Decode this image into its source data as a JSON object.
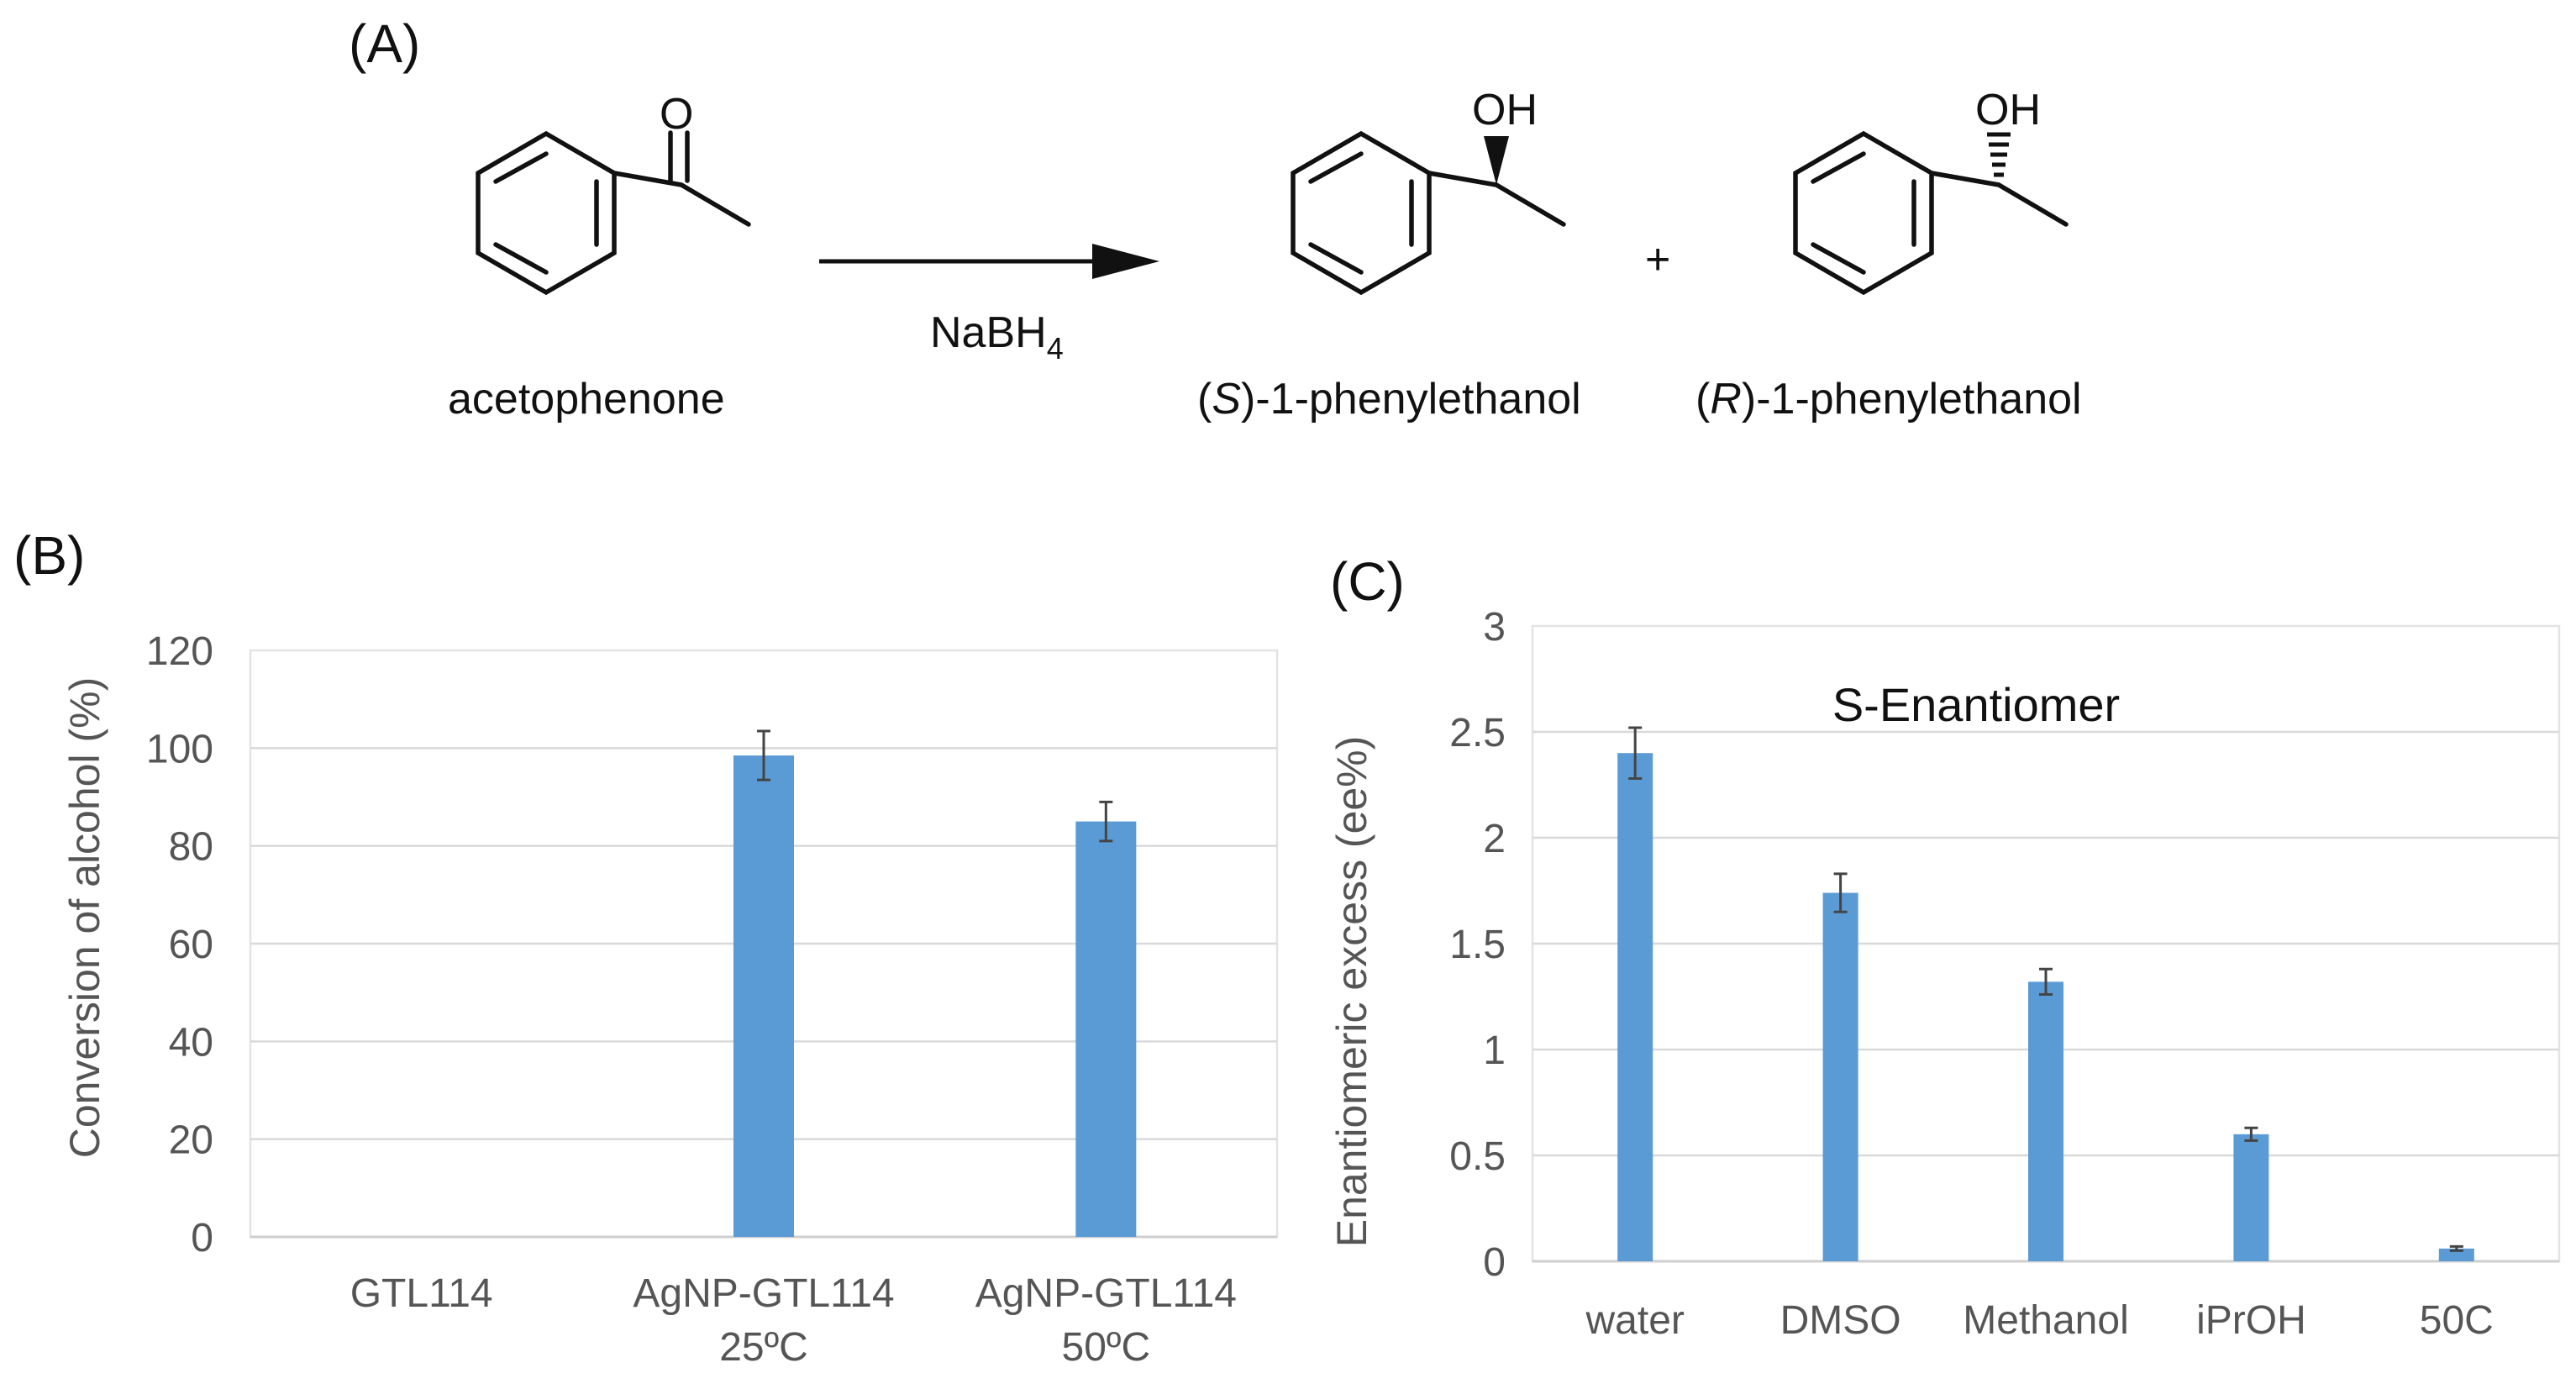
{
  "panel_a": {
    "label": "(A)",
    "reagent_prefix": "NaBH",
    "reagent_sub": "4",
    "carbonyl_atom": "O",
    "hydroxyl_S": "OH",
    "hydroxyl_R": "OH",
    "plus": "+",
    "names": {
      "reactant": "acetophenone",
      "product_s_open": "(",
      "product_s_config": "S",
      "product_s_rest": ")-1-phenylethanol",
      "product_r_open": "(",
      "product_r_config": "R",
      "product_r_rest": ")-1-phenylethanol"
    }
  },
  "panel_b_label": "(B)",
  "panel_c_label": "(C)",
  "chart_data": [
    {
      "type": "bar",
      "panel": "B",
      "title": "",
      "xlabel": "",
      "ylabel": "Conversion of alcohol (%)",
      "ylim": [
        0,
        120
      ],
      "yticks": [
        "0",
        "20",
        "40",
        "60",
        "80",
        "100",
        "120"
      ],
      "grid": true,
      "categories": [
        "GTL114",
        "AgNP-GTL114 25ºC",
        "AgNP-GTL114 50ºC"
      ],
      "category_lines": [
        [
          "GTL114"
        ],
        [
          "AgNP-GTL114",
          "25ºC"
        ],
        [
          "AgNP-GTL114",
          "50ºC"
        ]
      ],
      "values": [
        0,
        98.5,
        85
      ],
      "errors": [
        0,
        5,
        4
      ],
      "color": "#5b9bd5"
    },
    {
      "type": "bar",
      "panel": "C",
      "title": "S-Enantiomer",
      "xlabel": "",
      "ylabel": "Enantiomeric excess (ee%)",
      "ylim": [
        0,
        3
      ],
      "yticks": [
        "0",
        "0.5",
        "1",
        "1.5",
        "2",
        "2.5",
        "3"
      ],
      "grid": true,
      "categories": [
        "water",
        "DMSO",
        "Methanol",
        "iPrOH",
        "50C"
      ],
      "values": [
        2.4,
        1.74,
        1.32,
        0.6,
        0.06
      ],
      "errors": [
        0.12,
        0.09,
        0.06,
        0.03,
        0.01
      ],
      "color": "#5b9bd5"
    }
  ]
}
